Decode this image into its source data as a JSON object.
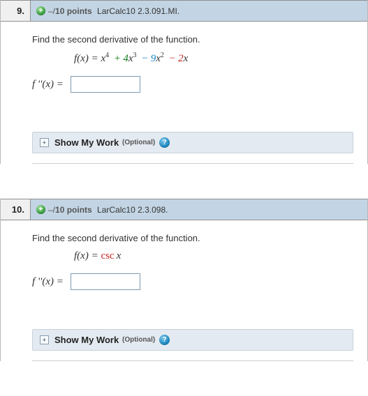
{
  "q9": {
    "number": "9.",
    "points_prefix": "–/",
    "points_value": "10 points",
    "source": "LarCalc10 2.3.091.MI.",
    "prompt": "Find the second derivative of the function.",
    "lhs": "f ''(x)  =",
    "show_my_work": "Show My Work",
    "optional": "(Optional)",
    "fx_lhs": "f(x)  =  x",
    "exp4": "4",
    "plus": "+",
    "coef4": "4",
    "x3": "x",
    "exp3": "3",
    "minus1": "−",
    "coef9": "9",
    "x2": "x",
    "exp2": "2",
    "minus2": "−",
    "coef2": "2",
    "xc": "x"
  },
  "q10": {
    "number": "10.",
    "points_prefix": "–/",
    "points_value": "10 points",
    "source": "LarCalc10 2.3.098.",
    "prompt": "Find the second derivative of the function.",
    "lhs": "f ''(x)  =",
    "show_my_work": "Show My Work",
    "optional": "(Optional)",
    "fx_lhs": "f(x)  =  ",
    "csc": "csc",
    "x": "x"
  },
  "icons": {
    "plus": "+",
    "expand": "+",
    "help": "?"
  }
}
